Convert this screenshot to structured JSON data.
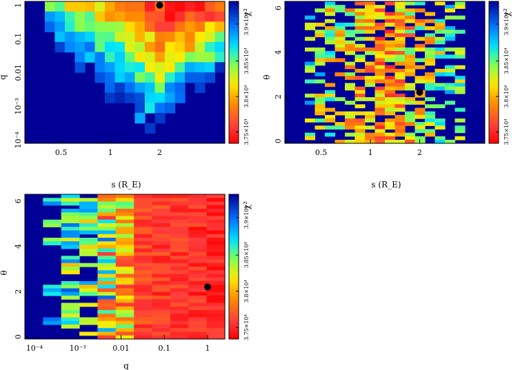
{
  "colorbar": {
    "label": "χ²",
    "ticks": [
      {
        "label": "3.75×10⁴",
        "value": 0.08
      },
      {
        "label": "3.8×10⁴",
        "value": 0.33
      },
      {
        "label": "3.85×10⁴",
        "value": 0.58
      },
      {
        "label": "3.9×10⁴",
        "value": 0.84
      }
    ]
  },
  "chart_data": [
    {
      "type": "heatmap",
      "id": "s-q",
      "xlabel": "s (R_E)",
      "ylabel": "q",
      "xscale": "log",
      "xlim": [
        0.3,
        5.0
      ],
      "yscale": "log",
      "ylim": [
        8e-05,
        1.3
      ],
      "xticks": [
        {
          "v": 0.5,
          "t": "0.5"
        },
        {
          "v": 1,
          "t": "1"
        },
        {
          "v": 2,
          "t": "2"
        }
      ],
      "yticks": [
        {
          "v": 1,
          "t": "1"
        },
        {
          "v": 0.1,
          "t": "0.1"
        },
        {
          "v": 0.01,
          "t": "0.01"
        },
        {
          "v": 0.001,
          "t": "10⁻³"
        },
        {
          "v": 0.0001,
          "t": "10⁻⁴"
        }
      ],
      "best_fit": {
        "x": 2.0,
        "y": 1.0
      },
      "cols": 20,
      "rows": 14,
      "seed": 11
    },
    {
      "type": "heatmap",
      "id": "s-theta",
      "xlabel": "s (R_E)",
      "ylabel": "θ",
      "xscale": "log",
      "xlim": [
        0.3,
        5.0
      ],
      "yscale": "linear",
      "ylim": [
        -0.1,
        6.3
      ],
      "xticks": [
        {
          "v": 0.5,
          "t": "0.5"
        },
        {
          "v": 1,
          "t": "1"
        },
        {
          "v": 2,
          "t": "2"
        }
      ],
      "yticks": [
        {
          "v": 0,
          "t": "0"
        },
        {
          "v": 2,
          "t": "2"
        },
        {
          "v": 4,
          "t": "4"
        },
        {
          "v": 6,
          "t": "6"
        }
      ],
      "best_fit": {
        "x": 2.0,
        "y": 2.2
      },
      "cols": 20,
      "rows": 40,
      "seed": 23
    },
    {
      "type": "heatmap",
      "id": "q-theta",
      "xlabel": "q",
      "ylabel": "θ",
      "xscale": "log",
      "xlim": [
        6e-05,
        2.5
      ],
      "yscale": "linear",
      "ylim": [
        -0.1,
        6.3
      ],
      "xticks": [
        {
          "v": 0.0001,
          "t": "10⁻⁴"
        },
        {
          "v": 0.001,
          "t": "10⁻³"
        },
        {
          "v": 0.01,
          "t": "0.01"
        },
        {
          "v": 0.1,
          "t": "0.1"
        },
        {
          "v": 1,
          "t": "1"
        }
      ],
      "yticks": [
        {
          "v": 0,
          "t": "0"
        },
        {
          "v": 2,
          "t": "2"
        },
        {
          "v": 4,
          "t": "4"
        },
        {
          "v": 6,
          "t": "6"
        }
      ],
      "best_fit": {
        "x": 1.0,
        "y": 2.2
      },
      "cols": 11,
      "rows": 40,
      "seed": 37
    }
  ]
}
